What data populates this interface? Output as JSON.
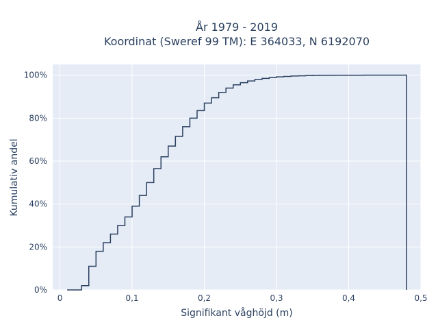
{
  "chart_data": {
    "type": "line",
    "title_line1": "År 1979 - 2019",
    "title_line2": "Koordinat (Sweref 99 TM): E 364033, N 6192070",
    "xlabel": "Signifikant våghöjd (m)",
    "ylabel": "Kumulativ andel",
    "xlim": [
      -0.01,
      0.5
    ],
    "ylim": [
      0,
      1.05
    ],
    "x_ticks": [
      {
        "value": 0,
        "label": "0"
      },
      {
        "value": 0.1,
        "label": "0,1"
      },
      {
        "value": 0.2,
        "label": "0,2"
      },
      {
        "value": 0.3,
        "label": "0,3"
      },
      {
        "value": 0.4,
        "label": "0,4"
      },
      {
        "value": 0.5,
        "label": "0,5"
      }
    ],
    "y_ticks": [
      {
        "value": 0,
        "label": "0%"
      },
      {
        "value": 0.2,
        "label": "20%"
      },
      {
        "value": 0.4,
        "label": "40%"
      },
      {
        "value": 0.6,
        "label": "60%"
      },
      {
        "value": 0.8,
        "label": "80%"
      },
      {
        "value": 1.0,
        "label": "100%"
      }
    ],
    "grid": true,
    "line_color": "#2a3f5f",
    "plot_bg": "#e5ecf6",
    "series": [
      {
        "x": [
          0.02,
          0.03,
          0.04,
          0.05,
          0.06,
          0.07,
          0.08,
          0.09,
          0.1,
          0.11,
          0.12,
          0.13,
          0.14,
          0.15,
          0.16,
          0.17,
          0.18,
          0.19,
          0.2,
          0.21,
          0.22,
          0.23,
          0.24,
          0.25,
          0.26,
          0.27,
          0.28,
          0.29,
          0.3,
          0.31,
          0.32,
          0.33,
          0.34,
          0.35,
          0.36,
          0.38,
          0.4,
          0.42,
          0.44,
          0.46,
          0.48
        ],
        "y": [
          0.0,
          0.02,
          0.11,
          0.18,
          0.22,
          0.26,
          0.3,
          0.34,
          0.39,
          0.44,
          0.5,
          0.565,
          0.62,
          0.67,
          0.715,
          0.76,
          0.8,
          0.835,
          0.87,
          0.895,
          0.92,
          0.94,
          0.955,
          0.965,
          0.973,
          0.98,
          0.985,
          0.989,
          0.992,
          0.994,
          0.996,
          0.997,
          0.998,
          0.999,
          0.9995,
          0.9998,
          0.9999,
          1.0,
          1.0,
          1.0,
          1.0
        ]
      }
    ]
  }
}
